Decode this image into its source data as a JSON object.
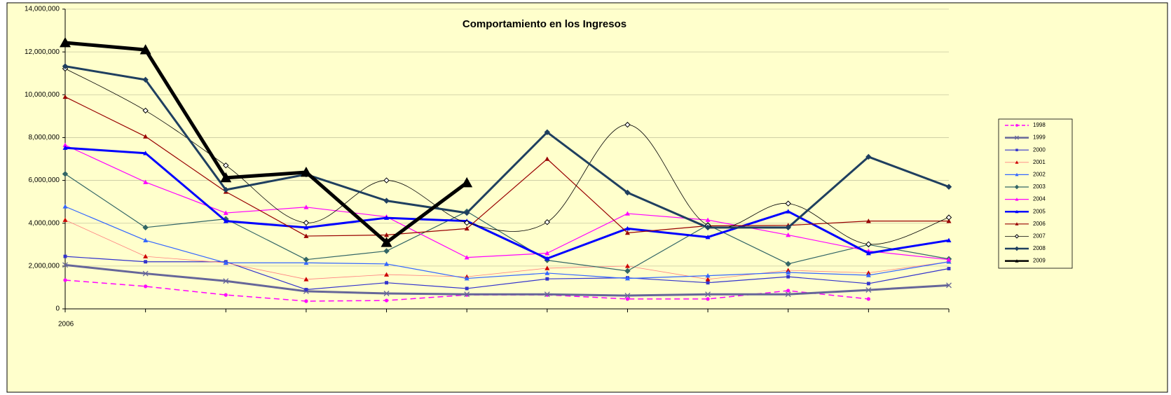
{
  "chart_data": {
    "type": "line",
    "title": "Comportamiento en los Ingresos",
    "categories": [
      "2006",
      null,
      null,
      null,
      null,
      null,
      null,
      null,
      null,
      null,
      null,
      null
    ],
    "ylim": [
      0,
      14000000
    ],
    "yticks": [
      0,
      {
        "value": 2000000,
        "label": "2,000,000"
      },
      {
        "value": 4000000,
        "label": "4,000,000"
      },
      {
        "value": 6000000,
        "label": "6,000,000"
      },
      {
        "value": 8000000,
        "label": "8,000,000"
      },
      {
        "value": 10000000,
        "label": "10,000,000"
      },
      {
        "value": 12000000,
        "label": "12,000,000"
      },
      {
        "value": 14000000,
        "label": "14,000,000"
      }
    ],
    "grid": true,
    "legend": "right",
    "series": [
      {
        "name": "1998",
        "color": "#ff00ff",
        "marker": "circle",
        "width": 1.5,
        "dash": true,
        "values": [
          1340000,
          1050000,
          650000,
          360000,
          390000,
          650000,
          650000,
          460000,
          460000,
          850000,
          460000,
          null
        ]
      },
      {
        "name": "1999",
        "color": "#666699",
        "marker": "x",
        "width": 3,
        "values": [
          2050000,
          1650000,
          1300000,
          820000,
          720000,
          680000,
          680000,
          620000,
          680000,
          680000,
          880000,
          1100000
        ]
      },
      {
        "name": "2000",
        "color": "#3333cc",
        "marker": "square",
        "width": 1.2,
        "values": [
          2450000,
          2200000,
          2200000,
          900000,
          1220000,
          950000,
          1400000,
          1450000,
          1220000,
          1500000,
          1180000,
          1880000
        ]
      },
      {
        "name": "2001",
        "color": "#ff8080",
        "marker_color": "#cc0000",
        "marker": "triangle",
        "width": 0.8,
        "values": [
          4150000,
          2450000,
          2150000,
          1380000,
          1600000,
          1500000,
          1900000,
          2000000,
          1380000,
          1800000,
          1680000,
          2200000
        ]
      },
      {
        "name": "2002",
        "color": "#3366ff",
        "marker": "triangle",
        "width": 1.2,
        "values": [
          4780000,
          3200000,
          2150000,
          2150000,
          2100000,
          1420000,
          1670000,
          1420000,
          1550000,
          1700000,
          1570000,
          2200000
        ]
      },
      {
        "name": "2003",
        "color": "#336666",
        "marker": "diamond",
        "width": 1.2,
        "values": [
          6300000,
          3800000,
          4200000,
          2300000,
          2700000,
          4550000,
          2270000,
          1770000,
          3920000,
          2100000,
          3000000,
          2330000
        ]
      },
      {
        "name": "2004",
        "color": "#ff00ff",
        "marker": "triangle",
        "width": 1.2,
        "values": [
          7650000,
          5920000,
          4480000,
          4750000,
          4300000,
          2400000,
          2600000,
          4450000,
          4150000,
          3450000,
          2700000,
          2300000
        ]
      },
      {
        "name": "2005",
        "color": "#0000ff",
        "marker": "triangle",
        "width": 3,
        "values": [
          7520000,
          7270000,
          4100000,
          3800000,
          4250000,
          4100000,
          2350000,
          3750000,
          3350000,
          4550000,
          2600000,
          3200000
        ]
      },
      {
        "name": "2006",
        "color": "#990000",
        "marker": "triangle",
        "width": 1.2,
        "values": [
          9900000,
          8050000,
          5470000,
          3400000,
          3450000,
          3750000,
          7000000,
          3550000,
          3880000,
          3900000,
          4100000,
          4100000
        ]
      },
      {
        "name": "2007",
        "color": "#000000",
        "marker": "open-diamond",
        "width": 0.8,
        "smooth": true,
        "values": [
          11220000,
          9260000,
          6700000,
          4020000,
          6000000,
          4020000,
          4050000,
          8600000,
          3900000,
          4920000,
          3020000,
          4270000
        ]
      },
      {
        "name": "2008",
        "color": "#1f3f5f",
        "marker": "diamond",
        "width": 3,
        "values": [
          11330000,
          10700000,
          5560000,
          6280000,
          5050000,
          4480000,
          8250000,
          5430000,
          3800000,
          3800000,
          7100000,
          5700000
        ]
      },
      {
        "name": "2009",
        "color": "#000000",
        "marker": "triangle",
        "width": 5,
        "marker_size": 8,
        "values": [
          12430000,
          12100000,
          6120000,
          6380000,
          3100000,
          5890000,
          null,
          null,
          null,
          null,
          null,
          null
        ]
      }
    ]
  }
}
